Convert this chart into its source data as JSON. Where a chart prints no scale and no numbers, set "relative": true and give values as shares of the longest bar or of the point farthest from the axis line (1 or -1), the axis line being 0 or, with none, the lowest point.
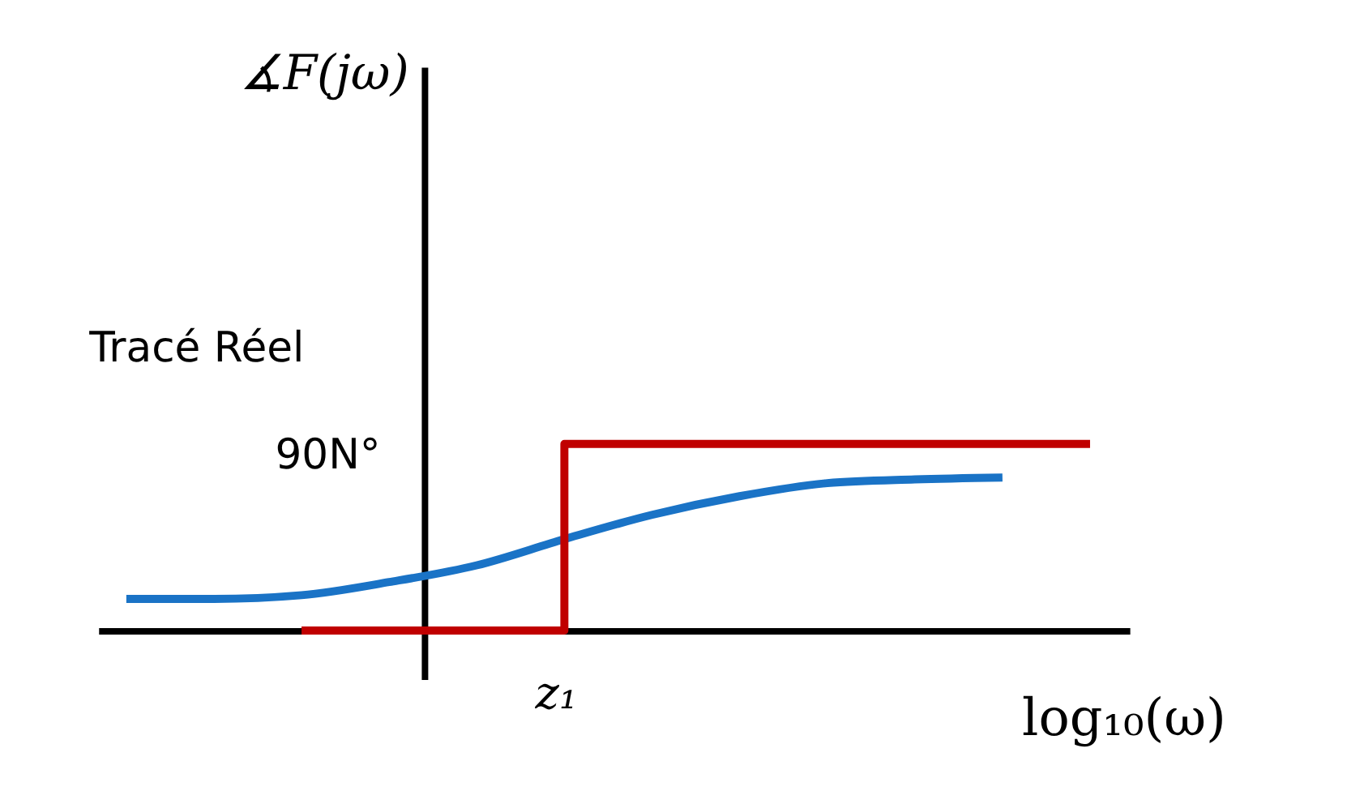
{
  "chart_data": {
    "type": "line",
    "relative": true,
    "xlabel": "log₁₀(ω)",
    "grid": false,
    "marker": "none",
    "line_style": "solid",
    "categories": [
      null,
      null,
      null,
      null,
      null,
      null,
      null,
      null,
      null,
      null,
      null,
      null
    ],
    "series": [
      {
        "type": "line",
        "color": "#1a73c6",
        "values": [
          0.17,
          0.17,
          0.19,
          0.26,
          0.35,
          0.49,
          0.62,
          0.72,
          0.79,
          0.81,
          0.82,
          null
        ]
      },
      {
        "type": "step",
        "color": "#c00000",
        "values": [
          null,
          null,
          0,
          0,
          0,
          1,
          1,
          1,
          1,
          1,
          1,
          1
        ]
      }
    ],
    "annotations": [
      "Tracé Réel",
      "90N°",
      "z₁",
      "∡F(jω)"
    ]
  }
}
